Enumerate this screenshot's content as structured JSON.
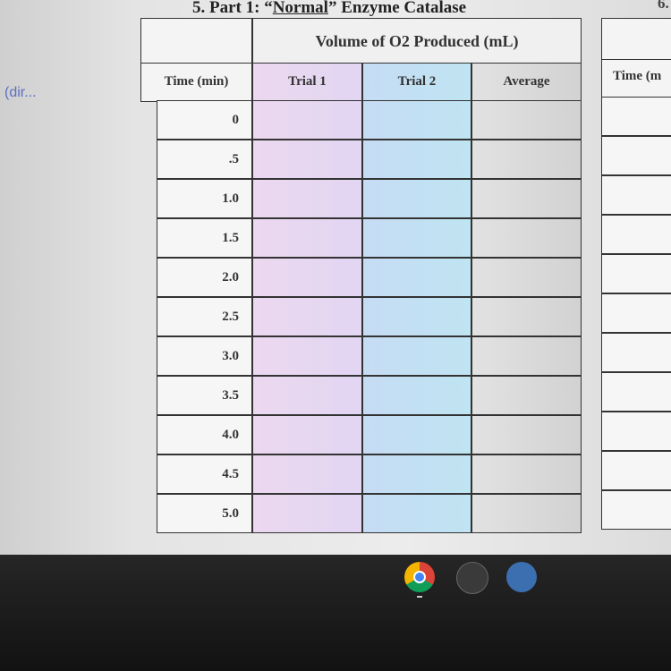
{
  "title": {
    "prefix": "5. Part 1: “",
    "emphasis": "Normal",
    "suffix": "” Enzyme Catalase"
  },
  "left_note": "(dir...",
  "table": {
    "group_header": "Volume of O2 Produced (mL)",
    "columns": [
      "Time (min)",
      "Trial 1",
      "Trial 2",
      "Average"
    ],
    "rows": [
      "0",
      ".5",
      "1.0",
      "1.5",
      "2.0",
      "2.5",
      "3.0",
      "3.5",
      "4.0",
      "4.5",
      "5.0"
    ]
  },
  "right_table": {
    "title": "6.",
    "column": "Time (m"
  }
}
